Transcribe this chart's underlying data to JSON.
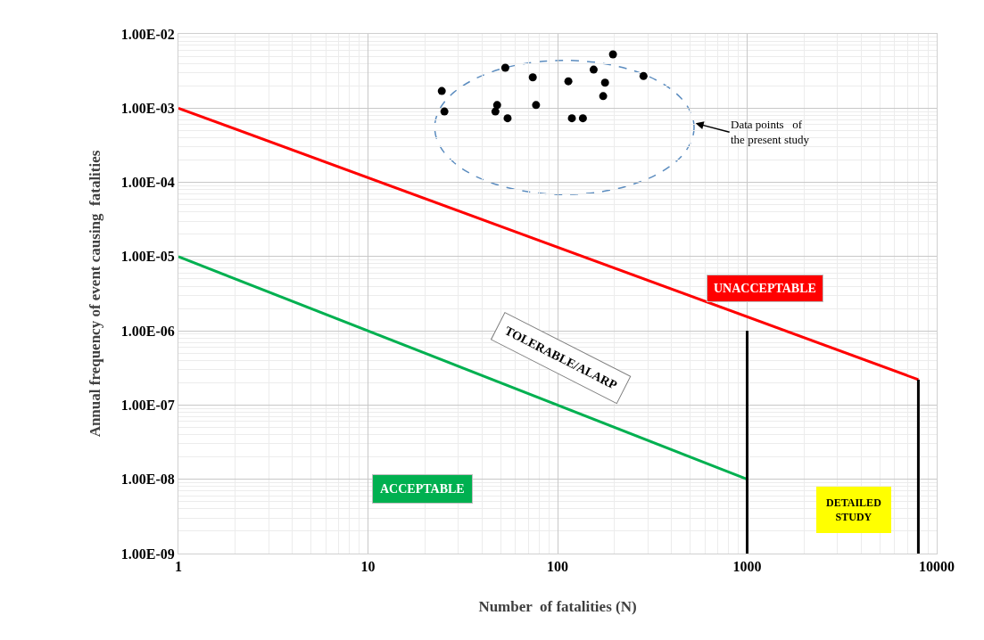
{
  "chart_data": {
    "type": "scatter",
    "xlabel": "Number  of fatalities (N)",
    "ylabel": "Annual frequency of event causing  fatalities",
    "log": "xy",
    "grid": true,
    "xlim": [
      1,
      10000
    ],
    "xticks": [
      1,
      10,
      100,
      1000,
      10000
    ],
    "ylim": [
      1e-09,
      0.01
    ],
    "yticks": [
      {
        "value": 1e-09,
        "label": "1.00E-09"
      },
      {
        "value": 1e-08,
        "label": "1.00E-08"
      },
      {
        "value": 1e-07,
        "label": "1.00E-07"
      },
      {
        "value": 1e-06,
        "label": "1.00E-06"
      },
      {
        "value": 1e-05,
        "label": "1.00E-05"
      },
      {
        "value": 0.0001,
        "label": "1.00E-04"
      },
      {
        "value": 0.001,
        "label": "1.00E-03"
      },
      {
        "value": 0.01,
        "label": "1.00E-02"
      }
    ],
    "series": [
      {
        "type": "scatter",
        "color": "#000000",
        "marker": "circle",
        "x": [
          24.5,
          25.3,
          53,
          48,
          47,
          54.5,
          74,
          77,
          114,
          119,
          136,
          155,
          196,
          178,
          174,
          284
        ],
        "values": [
          0.0017,
          0.0009,
          0.0035,
          0.0011,
          0.0009,
          0.00073,
          0.0026,
          0.0011,
          0.0023,
          0.00073,
          0.00073,
          0.0033,
          0.0053,
          0.0022,
          0.00145,
          0.0027
        ]
      },
      {
        "type": "line",
        "color": "#ff0000",
        "x": [
          1,
          8000
        ],
        "values": [
          0.001,
          2.2e-07
        ]
      },
      {
        "type": "line",
        "color": "#00b050",
        "x": [
          1,
          1000
        ],
        "values": [
          1e-05,
          1e-08
        ]
      },
      {
        "type": "line",
        "color": "#000000",
        "x": [
          1000,
          1000
        ],
        "values": [
          1e-09,
          1e-06
        ]
      },
      {
        "type": "line",
        "color": "#000000",
        "x": [
          8000,
          8000
        ],
        "values": [
          1e-09,
          2.2e-07
        ]
      }
    ],
    "annotations": [
      "UNACCEPTABLE",
      "TOLERABLE/ALARP",
      "ACCEPTABLE",
      "DETAILED\nSTUDY",
      "Data points   of\nthe present study"
    ]
  }
}
